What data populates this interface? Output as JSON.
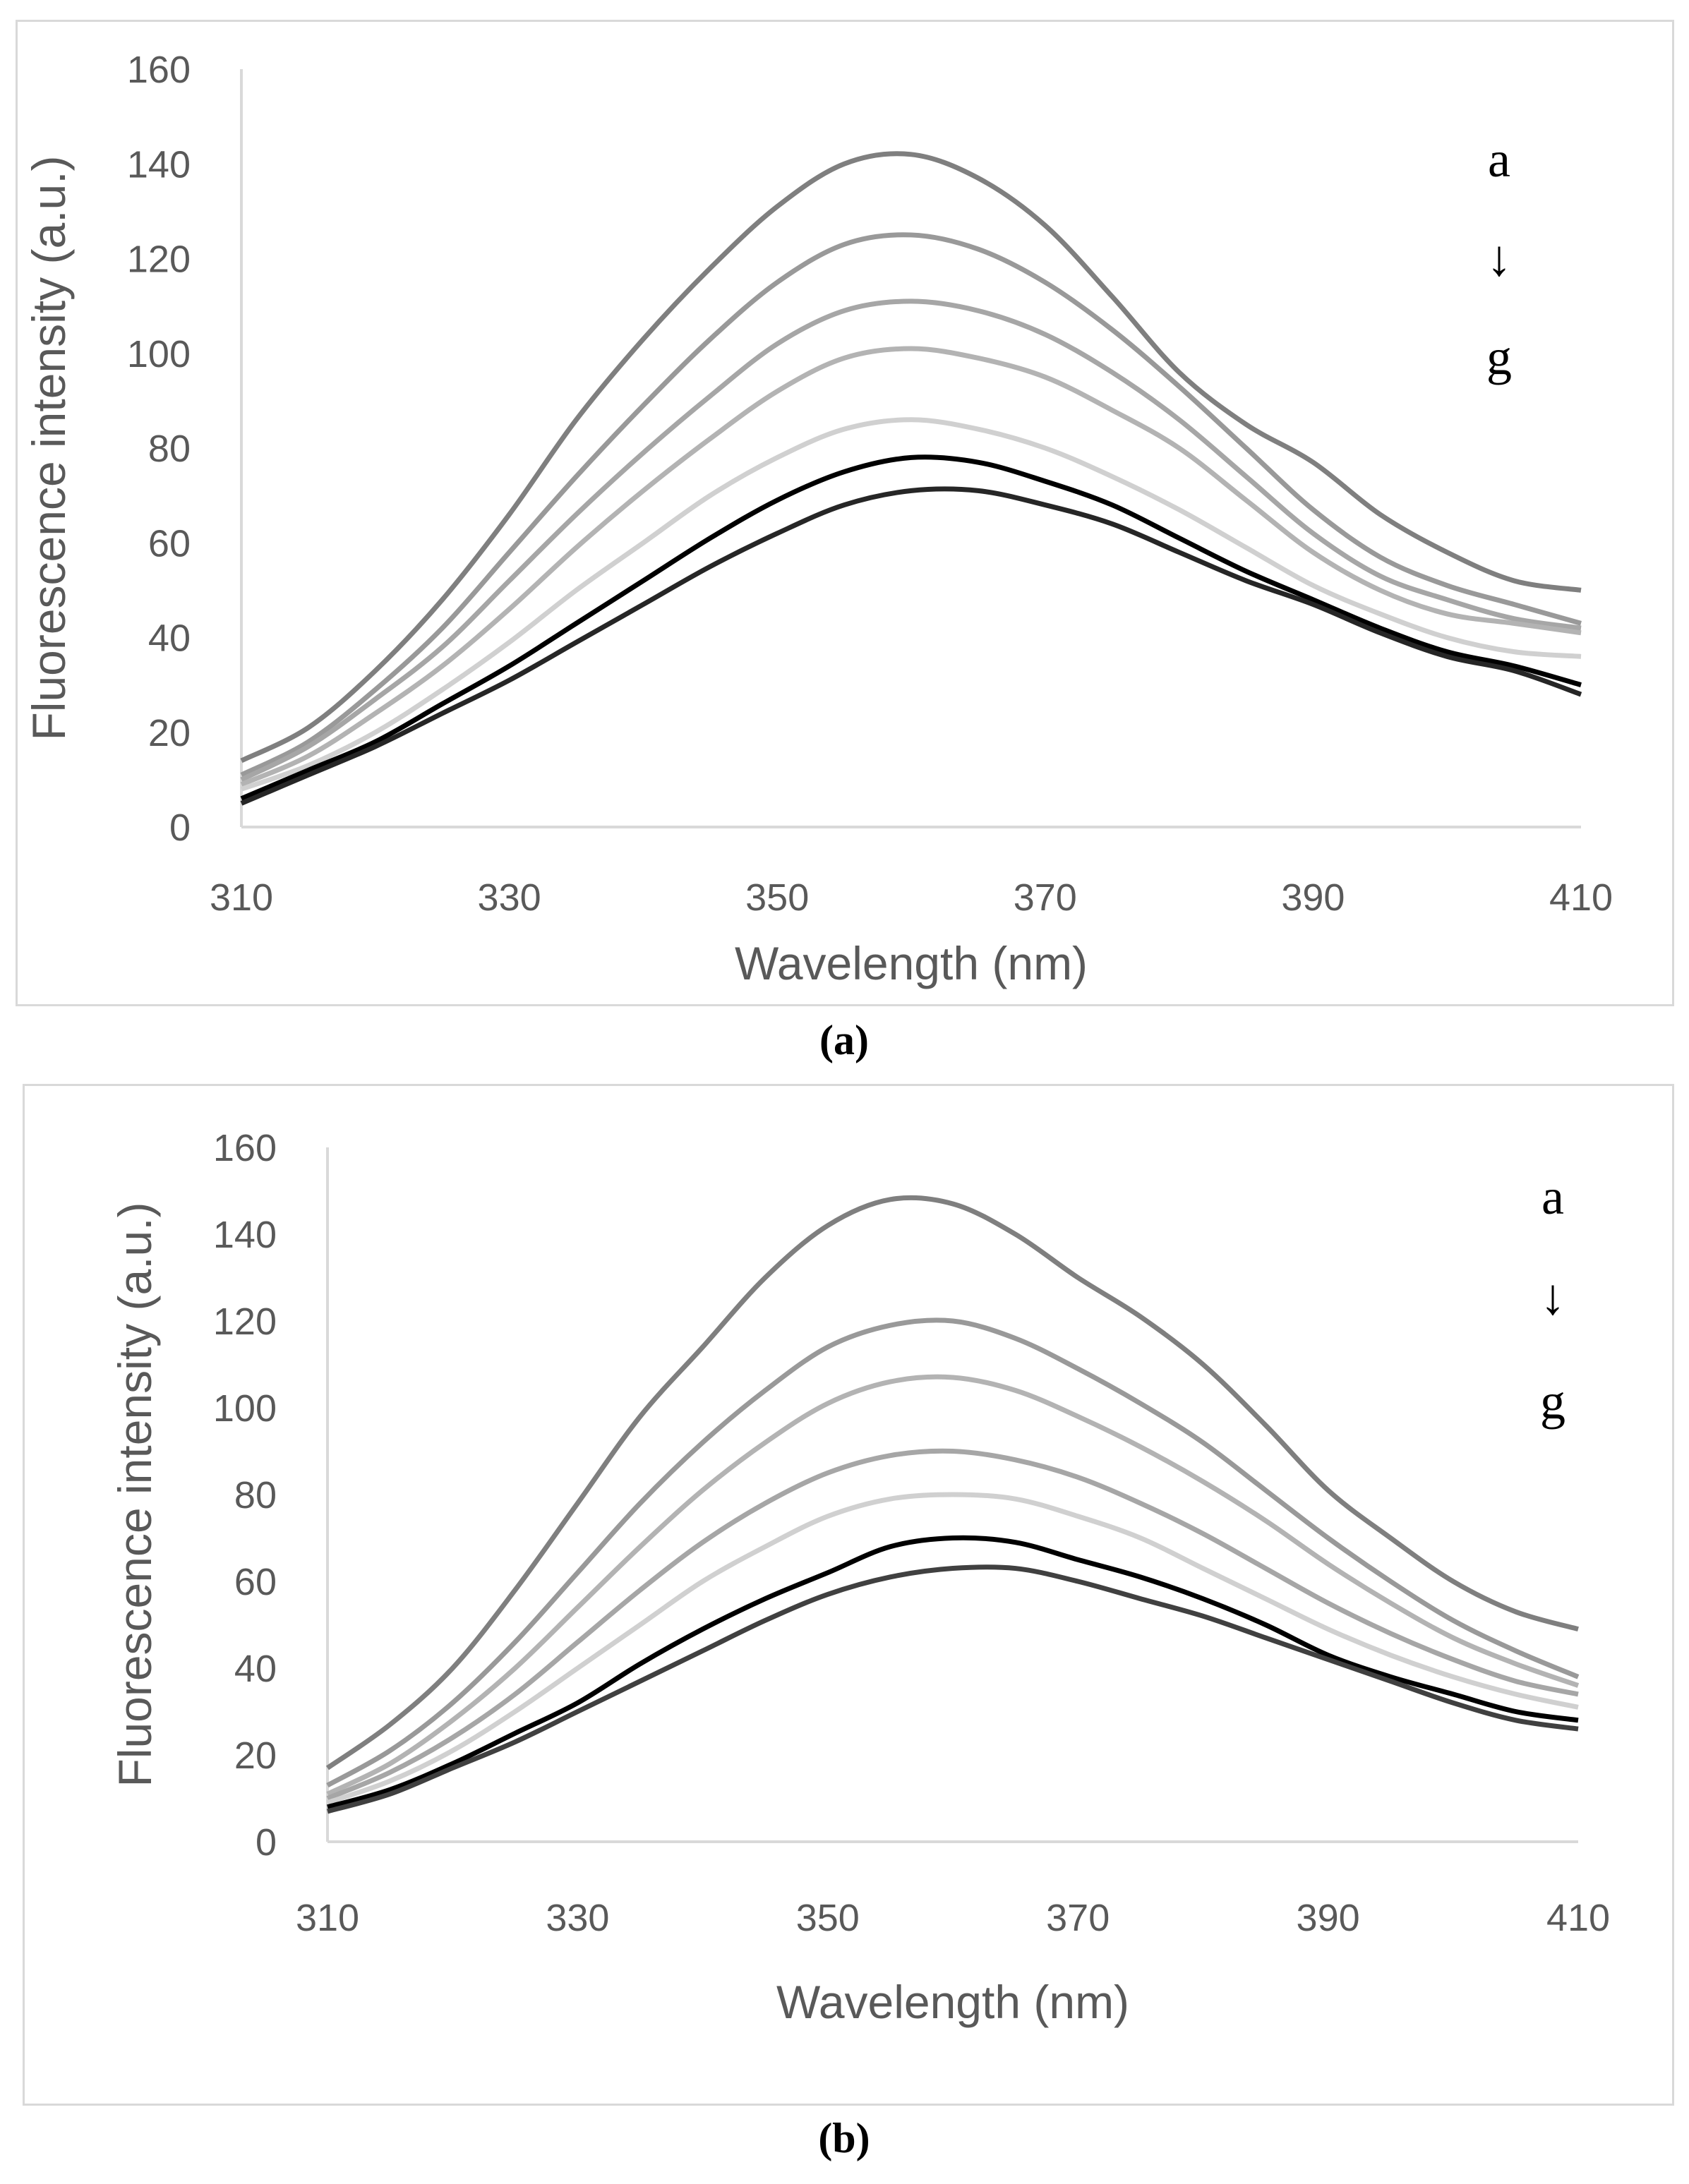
{
  "panels": [
    {
      "label": "(a)",
      "chart_data": {
        "type": "line",
        "title": "",
        "xlabel": "Wavelength (nm)",
        "ylabel": "Fluorescence intensity (a.u.)",
        "xlim": [
          310,
          410
        ],
        "ylim": [
          0,
          160
        ],
        "xticks": [
          310,
          330,
          350,
          370,
          390,
          410
        ],
        "yticks": [
          0,
          20,
          40,
          60,
          80,
          100,
          120,
          140,
          160
        ],
        "grid": false,
        "annotation": {
          "top": "a",
          "arrow": "↓",
          "bottom": "g"
        },
        "x": [
          310,
          315,
          320,
          325,
          330,
          335,
          340,
          345,
          350,
          355,
          360,
          365,
          370,
          375,
          380,
          385,
          390,
          395,
          400,
          405,
          410
        ],
        "series": [
          {
            "color": "#7f7f7f",
            "values": [
              14,
              21,
              33,
              48,
              66,
              86,
              103,
              118,
              131,
              140,
              142,
              137,
              127,
              112,
              96,
              85,
              77,
              66,
              58,
              52,
              50
            ]
          },
          {
            "color": "#999999",
            "values": [
              11,
              18,
              29,
              42,
              58,
              74,
              89,
              103,
              115,
              123,
              125,
              122,
              115,
              105,
              93,
              80,
              67,
              57,
              51,
              47,
              43
            ]
          },
          {
            "color": "#a6a6a6",
            "values": [
              10,
              17,
              27,
              38,
              52,
              66,
              79,
              91,
              102,
              109,
              111,
              109,
              104,
              96,
              86,
              74,
              62,
              53,
              48,
              44,
              42
            ]
          },
          {
            "color": "#b3b3b3",
            "values": [
              9,
              15,
              24,
              34,
              46,
              59,
              71,
              82,
              92,
              99,
              101,
              99,
              95,
              88,
              80,
              69,
              58,
              50,
              45,
              43,
              41
            ]
          },
          {
            "color": "#d0d0d0",
            "values": [
              8,
              13,
              20,
              29,
              39,
              50,
              60,
              70,
              78,
              84,
              86,
              84,
              80,
              74,
              67,
              59,
              51,
              45,
              40,
              37,
              36
            ]
          },
          {
            "color": "#000000",
            "values": [
              6,
              12,
              18,
              26,
              34,
              43,
              52,
              61,
              69,
              75,
              78,
              77,
              73,
              68,
              61,
              54,
              48,
              42,
              37,
              34,
              30
            ]
          },
          {
            "color": "#262626",
            "values": [
              5,
              11,
              17,
              24,
              31,
              39,
              47,
              55,
              62,
              68,
              71,
              71,
              68,
              64,
              58,
              52,
              47,
              41,
              36,
              33,
              28
            ]
          }
        ]
      }
    },
    {
      "label": "(b)",
      "chart_data": {
        "type": "line",
        "title": "",
        "xlabel": "Wavelength (nm)",
        "ylabel": "Fluorescence intensity (a.u.)",
        "xlim": [
          310,
          410
        ],
        "ylim": [
          0,
          160
        ],
        "xticks": [
          310,
          330,
          350,
          370,
          390,
          410
        ],
        "yticks": [
          0,
          20,
          40,
          60,
          80,
          100,
          120,
          140,
          160
        ],
        "grid": false,
        "annotation": {
          "top": "a",
          "arrow": "↓",
          "bottom": "g"
        },
        "x": [
          310,
          315,
          320,
          325,
          330,
          335,
          340,
          345,
          350,
          355,
          360,
          365,
          370,
          375,
          380,
          385,
          390,
          395,
          400,
          405,
          410
        ],
        "series": [
          {
            "color": "#7f7f7f",
            "values": [
              17,
              27,
              40,
              58,
              78,
              98,
              114,
              130,
              142,
              148,
              147,
              140,
              130,
              121,
              110,
              96,
              81,
              70,
              60,
              53,
              49
            ]
          },
          {
            "color": "#999999",
            "values": [
              13,
              21,
              32,
              46,
              62,
              78,
              92,
              104,
              114,
              119,
              120,
              116,
              109,
              101,
              92,
              81,
              70,
              60,
              51,
              44,
              38
            ]
          },
          {
            "color": "#b3b3b3",
            "values": [
              11,
              18,
              28,
              40,
              54,
              68,
              81,
              92,
              101,
              106,
              107,
              104,
              98,
              91,
              83,
              74,
              64,
              55,
              47,
              41,
              36
            ]
          },
          {
            "color": "#a6a6a6",
            "values": [
              10,
              16,
              24,
              34,
              46,
              58,
              69,
              78,
              85,
              89,
              90,
              88,
              84,
              78,
              71,
              63,
              55,
              48,
              42,
              37,
              34
            ]
          },
          {
            "color": "#d0d0d0",
            "values": [
              9,
              14,
              21,
              30,
              40,
              50,
              60,
              68,
              75,
              79,
              80,
              79,
              75,
              70,
              63,
              56,
              49,
              43,
              38,
              34,
              31
            ]
          },
          {
            "color": "#000000",
            "values": [
              8,
              12,
              18,
              25,
              32,
              41,
              49,
              56,
              62,
              68,
              70,
              69,
              65,
              61,
              56,
              50,
              43,
              38,
              34,
              30,
              28
            ]
          },
          {
            "color": "#404040",
            "values": [
              7,
              11,
              17,
              23,
              30,
              37,
              44,
              51,
              57,
              61,
              63,
              63,
              60,
              56,
              52,
              47,
              42,
              37,
              32,
              28,
              26
            ]
          }
        ]
      }
    }
  ]
}
